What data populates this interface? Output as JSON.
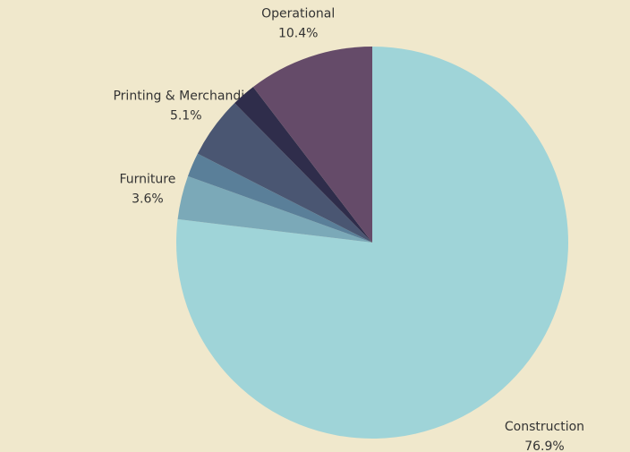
{
  "chart_data": {
    "type": "pie",
    "categories": [
      "Construction",
      "Furniture",
      null,
      "Printing & Merchandise",
      null,
      "Operational"
    ],
    "values": [
      76.9,
      3.6,
      2.0,
      5.1,
      2.0,
      10.4
    ],
    "value_labels": [
      "76.9%",
      "3.6%",
      null,
      "5.1%",
      null,
      "10.4%"
    ],
    "colors": [
      "#9fd4d8",
      "#7ba9b8",
      "#5a7f99",
      "#4a5672",
      "#2f2d4b",
      "#654b69"
    ]
  }
}
